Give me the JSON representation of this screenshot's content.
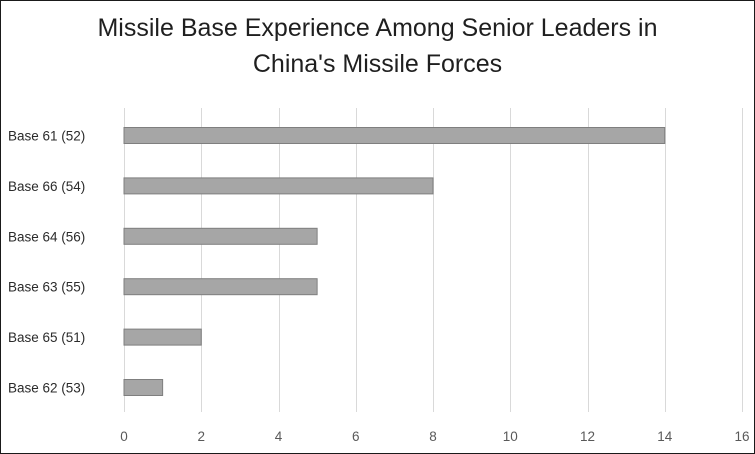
{
  "chart_data": {
    "type": "bar",
    "orientation": "horizontal",
    "title_lines": [
      "Missile Base Experience Among Senior Leaders in",
      "China's Missile Forces"
    ],
    "categories": [
      "Base 61 (52)",
      "Base 66 (54)",
      "Base 64 (56)",
      "Base 63 (55)",
      "Base 65 (51)",
      "Base 62 (53)"
    ],
    "values": [
      14,
      8,
      5,
      5,
      2,
      1
    ],
    "xlim": [
      0,
      16
    ],
    "xticks": [
      0,
      2,
      4,
      6,
      8,
      10,
      12,
      14,
      16
    ],
    "grid": "vertical",
    "legend": "none",
    "bar_color": "#a6a6a6",
    "bar_edge_color": "#7f7f7f"
  }
}
